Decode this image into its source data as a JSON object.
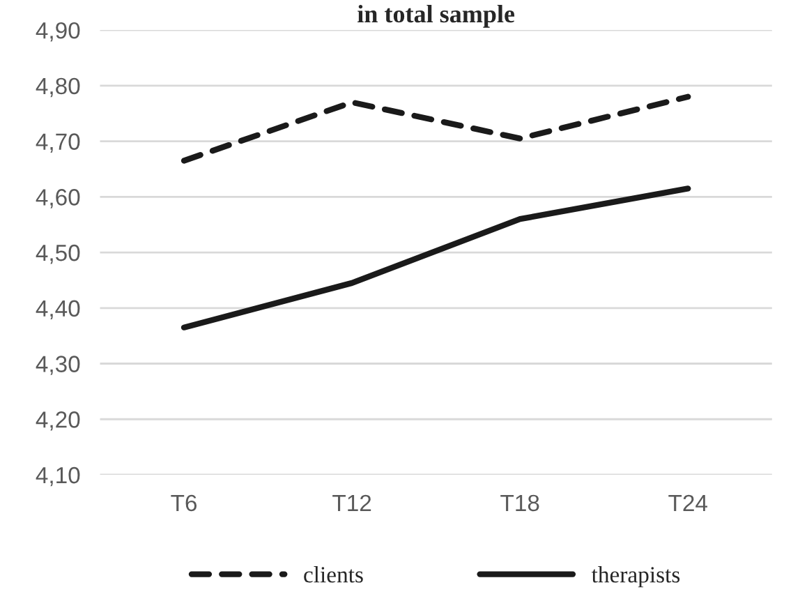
{
  "chart_data": {
    "type": "line",
    "title": "in total sample",
    "categories": [
      "T6",
      "T12",
      "T18",
      "T24"
    ],
    "series": [
      {
        "name": "clients",
        "color": "#1a1a1a",
        "line_style": "dashed",
        "values": [
          4.665,
          4.77,
          4.705,
          4.78
        ]
      },
      {
        "name": "therapists",
        "color": "#1a1a1a",
        "line_style": "solid",
        "values": [
          4.365,
          4.445,
          4.56,
          4.615
        ]
      }
    ],
    "ylim": [
      4.1,
      4.9
    ],
    "yticks": [
      {
        "value": 4.1,
        "label": "4,10"
      },
      {
        "value": 4.2,
        "label": "4,20"
      },
      {
        "value": 4.3,
        "label": "4,30"
      },
      {
        "value": 4.4,
        "label": "4,40"
      },
      {
        "value": 4.5,
        "label": "4,50"
      },
      {
        "value": 4.6,
        "label": "4,60"
      },
      {
        "value": 4.7,
        "label": "4,70"
      },
      {
        "value": 4.8,
        "label": "4,80"
      },
      {
        "value": 4.9,
        "label": "4,90"
      }
    ],
    "grid": "y",
    "legend": "bottom",
    "marker": "none"
  }
}
